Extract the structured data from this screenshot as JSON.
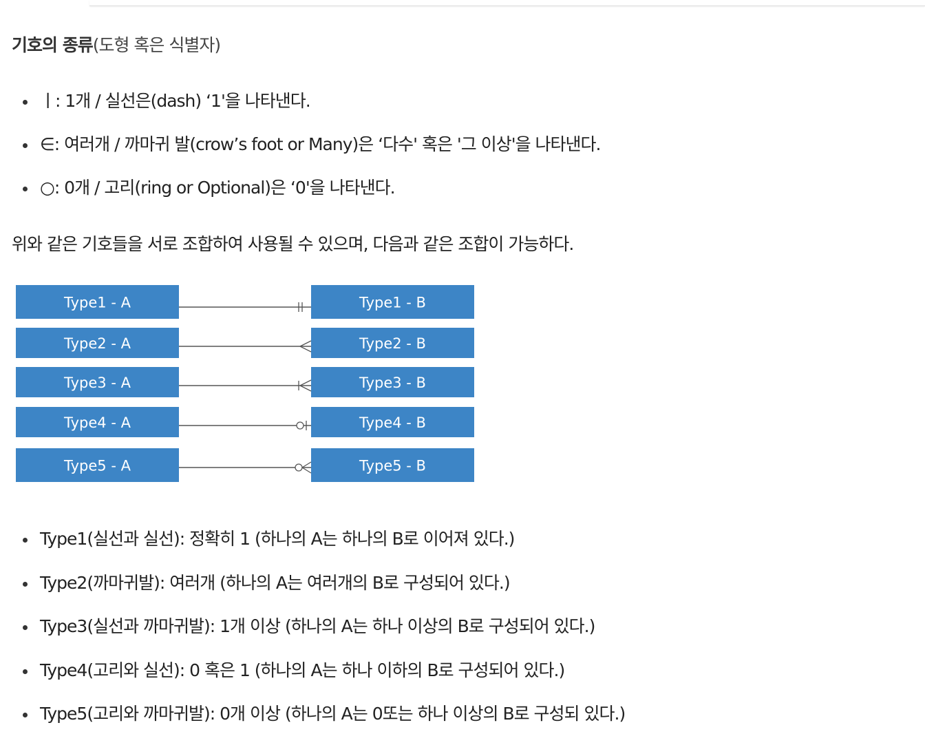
{
  "heading": {
    "bold": "기호의 종류",
    "sub": "(도형 혹은 식별자)"
  },
  "symbols": [
    {
      "text": "ㅣ: 1개 / 실선은(dash) ‘1'을 나타낸다."
    },
    {
      "text": "∈: 여러개 / 까마귀 발(crow’s foot or Many)은 ‘다수' 혹은 '그 이상'을 나타낸다."
    },
    {
      "text": "○: 0개 / 고리(ring or Optional)은 ‘0'을 나타낸다."
    }
  ],
  "paragraph": "위와 같은 기호들을 서로 조합하여 사용될 수 있으며, 다음과 같은 조합이 가능하다.",
  "diagram": {
    "box_color": "#3d85c6",
    "rows": [
      {
        "left": "Type1 - A",
        "right": "Type1 - B",
        "end": "one-and-only-one"
      },
      {
        "left": "Type2 - A",
        "right": "Type2 - B",
        "end": "many"
      },
      {
        "left": "Type3 - A",
        "right": "Type3 - B",
        "end": "one-or-many"
      },
      {
        "left": "Type4 - A",
        "right": "Type4 - B",
        "end": "zero-or-one"
      },
      {
        "left": "Type5 - A",
        "right": "Type5 - B",
        "end": "zero-or-many"
      }
    ]
  },
  "types": [
    {
      "text": "Type1(실선과 실선): 정확히 1 (하나의 A는 하나의 B로 이어져 있다.)"
    },
    {
      "text": "Type2(까마귀발): 여러개 (하나의 A는 여러개의 B로 구성되어 있다.)"
    },
    {
      "text": "Type3(실선과 까마귀발): 1개 이상 (하나의 A는 하나 이상의 B로 구성되어 있다.)"
    },
    {
      "text": "Type4(고리와 실선): 0 혹은 1 (하나의 A는 하나 이하의 B로 구성되어 있다.)"
    },
    {
      "text": "Type5(고리와 까마귀발): 0개 이상 (하나의 A는 0또는 하나 이상의 B로 구성되 있다.)"
    }
  ]
}
